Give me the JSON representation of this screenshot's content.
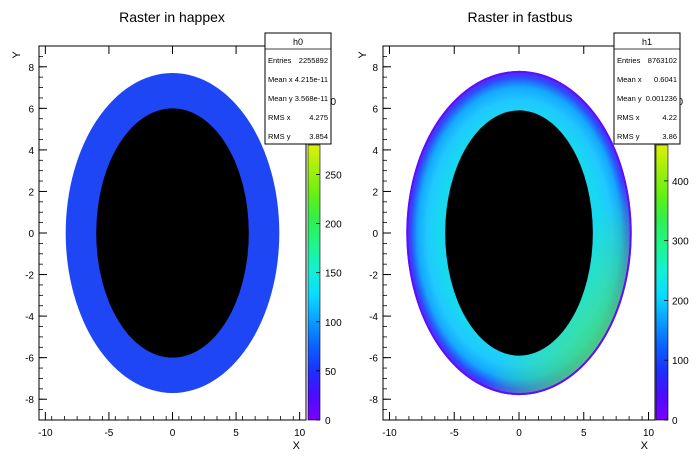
{
  "chart_data": [
    {
      "type": "heatmap",
      "title": "Raster in happex",
      "xlabel": "X",
      "ylabel": "Y",
      "xlim": [
        -10.5,
        10.5
      ],
      "ylim": [
        -9,
        9
      ],
      "x_ticks": [
        "-10",
        "-5",
        "0",
        "5",
        "10"
      ],
      "y_ticks": [
        "-8",
        "-6",
        "-4",
        "-2",
        "0",
        "2",
        "4",
        "6",
        "8"
      ],
      "shape": {
        "outer_ellipse": {
          "center": [
            0,
            0
          ],
          "radius_x": 8.4,
          "radius_y": 7.7
        },
        "inner_ellipse": {
          "center": [
            0,
            0
          ],
          "radius_x": 6.0,
          "radius_y": 6.0
        }
      },
      "palette_range": [
        0,
        280
      ],
      "palette_ticks": [
        "0",
        "50",
        "100",
        "150",
        "200",
        "250",
        "00"
      ],
      "stats": {
        "name": "h0",
        "rows": [
          {
            "label": "Entries",
            "value": "2255892"
          },
          {
            "label": "Mean x",
            "value": "4.215e-11"
          },
          {
            "label": "Mean y",
            "value": "3.568e-11"
          },
          {
            "label": "RMS x",
            "value": "4.275"
          },
          {
            "label": "RMS y",
            "value": "3.854"
          }
        ]
      }
    },
    {
      "type": "heatmap",
      "title": "Raster in fastbus",
      "xlabel": "X",
      "ylabel": "Y",
      "xlim": [
        -10.5,
        10.5
      ],
      "ylim": [
        -9,
        9
      ],
      "x_ticks": [
        "-10",
        "-5",
        "0",
        "5",
        "10"
      ],
      "y_ticks": [
        "-8",
        "-6",
        "-4",
        "-2",
        "0",
        "2",
        "4",
        "6",
        "8"
      ],
      "shape": {
        "outer_ellipse": {
          "center": [
            0,
            0
          ],
          "radius_x": 8.7,
          "radius_y": 7.8
        },
        "inner_ellipse": {
          "center": [
            0,
            0
          ],
          "radius_x": 5.7,
          "radius_y": 5.9
        }
      },
      "palette_range": [
        0,
        460
      ],
      "palette_ticks": [
        "0",
        "100",
        "200",
        "300",
        "400",
        "00"
      ],
      "stats": {
        "name": "h1",
        "rows": [
          {
            "label": "Entries",
            "value": "8763102"
          },
          {
            "label": "Mean x",
            "value": "0.6041"
          },
          {
            "label": "Mean y",
            "value": "0.001236"
          },
          {
            "label": "RMS x",
            "value": "4.22"
          },
          {
            "label": "RMS y",
            "value": "3.86"
          }
        ]
      }
    }
  ],
  "colors": {
    "background": "#ffffff",
    "frame": "#000000",
    "happex_ring": "#1e46f5",
    "inner_hole": "#000000",
    "palette": [
      "#7a00ff",
      "#4b0cff",
      "#1a32ff",
      "#0a64ff",
      "#0aa0ff",
      "#0adcff",
      "#14f0d2",
      "#1ef58c",
      "#2ef050",
      "#64f014",
      "#a0f00a",
      "#dcf00a"
    ]
  }
}
